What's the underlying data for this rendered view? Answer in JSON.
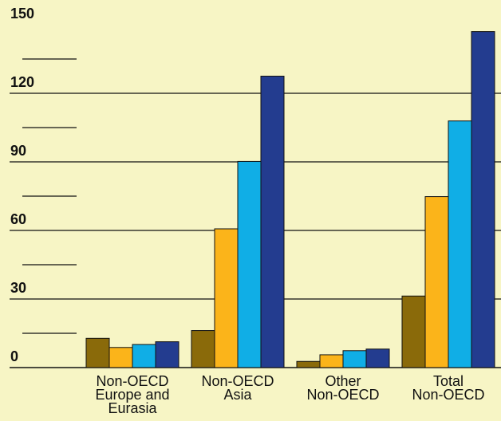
{
  "chart_data": {
    "type": "bar",
    "title": "",
    "xlabel": "",
    "ylabel": "",
    "ylim": [
      0,
      150
    ],
    "ytick_labels": [
      "0",
      "30",
      "60",
      "90",
      "120",
      "150"
    ],
    "grid": true,
    "categories": [
      [
        "Non-OECD",
        "Europe and",
        "Eurasia"
      ],
      [
        "Non-OECD",
        "Asia"
      ],
      [
        "Other",
        "Non-OECD"
      ],
      [
        "Total",
        "Non-OECD"
      ]
    ],
    "series": [
      {
        "color": "#8a6a0a",
        "values": [
          12.8,
          16.2,
          2.7,
          31.3
        ]
      },
      {
        "color": "#fbb41a",
        "values": [
          8.8,
          60.7,
          5.6,
          74.8
        ]
      },
      {
        "color": "#10aee6",
        "values": [
          10.1,
          90.2,
          7.4,
          107.9
        ]
      },
      {
        "color": "#233c8f",
        "values": [
          11.3,
          127.5,
          8.1,
          147.0
        ]
      }
    ]
  },
  "colors": {
    "background": "#f7f5c5",
    "gridline": "#111111",
    "bar_outline": "#111111"
  }
}
